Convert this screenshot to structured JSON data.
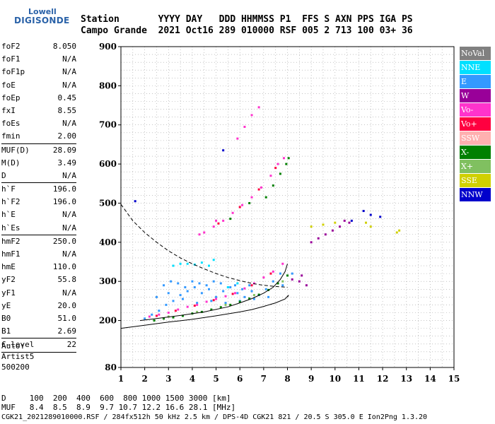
{
  "logo": {
    "line1": "Lowell",
    "line2": "DIGISONDE"
  },
  "header": {
    "line1": "Station       YYYY DAY   DDD HHMMSS P1  FFS S AXN PPS IGA PS",
    "line2": "Campo Grande  2021 Oct16 289 010000 RSF 005 2 713 100 03+ 36"
  },
  "params": [
    {
      "name": "foF2",
      "value": "8.050"
    },
    {
      "name": "foF1",
      "value": "N/A"
    },
    {
      "name": "foF1p",
      "value": "N/A"
    },
    {
      "name": "foE",
      "value": "N/A"
    },
    {
      "name": "foEp",
      "value": "0.45"
    },
    {
      "name": "fxI",
      "value": "8.55"
    },
    {
      "name": "foEs",
      "value": "N/A"
    },
    {
      "name": "fmin",
      "value": "2.00",
      "sep": true
    },
    {
      "name": "MUF(D)",
      "value": "28.09"
    },
    {
      "name": "M(D)",
      "value": "3.49"
    },
    {
      "name": "D",
      "value": "N/A",
      "sep": true
    },
    {
      "name": "h`F",
      "value": "196.0"
    },
    {
      "name": "h`F2",
      "value": "196.0"
    },
    {
      "name": "h`E",
      "value": "N/A"
    },
    {
      "name": "h`Es",
      "value": "N/A",
      "sep": true
    },
    {
      "name": "hmF2",
      "value": "250.0"
    },
    {
      "name": "hmF1",
      "value": "N/A"
    },
    {
      "name": "hmE",
      "value": "110.0"
    },
    {
      "name": "yF2",
      "value": "55.8"
    },
    {
      "name": "yF1",
      "value": "N/A"
    },
    {
      "name": "yE",
      "value": "20.0"
    },
    {
      "name": "B0",
      "value": "51.0"
    },
    {
      "name": "B1",
      "value": "2.69",
      "sep": true
    },
    {
      "name": "C-level",
      "value": "22",
      "sep": true
    }
  ],
  "auto": {
    "line1": "Auto:",
    "line2": "Artist5",
    "line3": "500200"
  },
  "legend": [
    {
      "label": "NoVal",
      "color": "#808080"
    },
    {
      "label": "NNE",
      "color": "#00e0ff"
    },
    {
      "label": "E",
      "color": "#3399ff"
    },
    {
      "label": "W",
      "color": "#990099"
    },
    {
      "label": "Vo-",
      "color": "#ff33cc"
    },
    {
      "label": "Vo+",
      "color": "#ff0040"
    },
    {
      "label": "SSW",
      "color": "#ffb0b0"
    },
    {
      "label": "X-",
      "color": "#008000"
    },
    {
      "label": "X+",
      "color": "#80c060"
    },
    {
      "label": "SSE",
      "color": "#d0d000"
    },
    {
      "label": "NNW",
      "color": "#0000cc"
    }
  ],
  "bottom": {
    "line1": "D     100  200  400  600  800 1000 1500 3000 [km]",
    "line2": "MUF   8.4  8.5  8.9  9.7 10.7 12.2 16.6 28.1 [MHz]"
  },
  "footer": "CGK21_2021289010000.RSF / 284fx512h 50 kHz 2.5 km / DPS-4D CGK21 821 / 20.5 S 305.0 E Ion2Png 1.3.20",
  "chart_data": {
    "type": "scatter",
    "xlim": [
      1,
      15
    ],
    "ylim": [
      80,
      900
    ],
    "x_ticks": [
      1,
      2,
      3,
      4,
      5,
      6,
      7,
      8,
      9,
      10,
      11,
      12,
      13,
      14,
      15
    ],
    "y_ticks": [
      80,
      200,
      300,
      400,
      500,
      600,
      700,
      800,
      900
    ],
    "grid": true,
    "series": [
      {
        "color_key": "E",
        "points": [
          [
            2.0,
            205
          ],
          [
            2.3,
            215
          ],
          [
            2.6,
            225
          ],
          [
            2.9,
            240
          ],
          [
            3.2,
            250
          ],
          [
            3.5,
            265
          ],
          [
            3.8,
            275
          ],
          [
            4.1,
            285
          ],
          [
            4.4,
            270
          ],
          [
            4.7,
            280
          ],
          [
            5.0,
            260
          ],
          [
            5.3,
            275
          ],
          [
            5.6,
            285
          ],
          [
            5.9,
            270
          ],
          [
            6.2,
            260
          ],
          [
            6.5,
            275
          ],
          [
            6.8,
            265
          ],
          [
            7.1,
            280
          ],
          [
            7.4,
            300
          ],
          [
            7.7,
            320
          ],
          [
            2.8,
            290
          ],
          [
            3.1,
            300
          ],
          [
            3.4,
            295
          ],
          [
            3.7,
            285
          ],
          [
            4.0,
            300
          ],
          [
            4.3,
            295
          ],
          [
            4.6,
            290
          ],
          [
            4.9,
            300
          ],
          [
            5.2,
            295
          ],
          [
            5.5,
            285
          ],
          [
            5.8,
            290
          ],
          [
            6.1,
            280
          ],
          [
            6.4,
            290
          ],
          [
            2.5,
            260
          ],
          [
            3.0,
            270
          ],
          [
            3.6,
            255
          ],
          [
            4.2,
            245
          ],
          [
            4.8,
            250
          ],
          [
            5.4,
            245
          ],
          [
            6.0,
            250
          ],
          [
            6.6,
            255
          ],
          [
            7.2,
            260
          ],
          [
            7.8,
            290
          ],
          [
            8.2,
            320
          ]
        ]
      },
      {
        "color_key": "NNE",
        "points": [
          [
            3.5,
            345
          ],
          [
            3.8,
            345
          ],
          [
            4.1,
            343
          ],
          [
            4.4,
            348
          ],
          [
            4.7,
            340
          ],
          [
            3.2,
            340
          ],
          [
            4.9,
            355
          ],
          [
            5.5,
            285
          ],
          [
            5.9,
            295
          ]
        ]
      },
      {
        "color_key": "Vo-",
        "points": [
          [
            2.2,
            210
          ],
          [
            2.6,
            215
          ],
          [
            3.0,
            220
          ],
          [
            3.4,
            228
          ],
          [
            3.8,
            235
          ],
          [
            4.2,
            240
          ],
          [
            4.6,
            248
          ],
          [
            5.0,
            255
          ],
          [
            5.4,
            262
          ],
          [
            5.8,
            270
          ],
          [
            6.2,
            282
          ],
          [
            6.6,
            295
          ],
          [
            7.0,
            310
          ],
          [
            7.4,
            325
          ],
          [
            7.8,
            345
          ],
          [
            4.5,
            425
          ],
          [
            4.9,
            440
          ],
          [
            5.3,
            455
          ],
          [
            5.7,
            475
          ],
          [
            6.1,
            495
          ],
          [
            6.5,
            515
          ],
          [
            6.9,
            540
          ],
          [
            7.3,
            570
          ],
          [
            7.6,
            600
          ],
          [
            7.85,
            615
          ],
          [
            5.9,
            665
          ],
          [
            6.2,
            695
          ],
          [
            6.5,
            725
          ],
          [
            6.8,
            745
          ],
          [
            5.0,
            455
          ],
          [
            4.3,
            420
          ]
        ]
      },
      {
        "color_key": "Vo+",
        "points": [
          [
            2.5,
            212
          ],
          [
            3.3,
            225
          ],
          [
            4.1,
            238
          ],
          [
            4.9,
            252
          ],
          [
            5.7,
            268
          ],
          [
            6.5,
            290
          ],
          [
            7.3,
            320
          ],
          [
            5.1,
            448
          ],
          [
            6.0,
            490
          ],
          [
            6.8,
            535
          ],
          [
            7.5,
            590
          ]
        ]
      },
      {
        "color_key": "W",
        "points": [
          [
            9.0,
            400
          ],
          [
            9.3,
            410
          ],
          [
            9.6,
            420
          ],
          [
            9.9,
            430
          ],
          [
            10.2,
            440
          ],
          [
            10.4,
            455
          ],
          [
            10.6,
            450
          ],
          [
            8.5,
            300
          ],
          [
            8.8,
            290
          ],
          [
            8.2,
            305
          ],
          [
            8.6,
            315
          ]
        ]
      },
      {
        "color_key": "X-",
        "points": [
          [
            2.4,
            200
          ],
          [
            2.8,
            205
          ],
          [
            3.2,
            208
          ],
          [
            3.6,
            212
          ],
          [
            4.0,
            218
          ],
          [
            4.4,
            222
          ],
          [
            4.8,
            228
          ],
          [
            5.2,
            234
          ],
          [
            5.6,
            240
          ],
          [
            6.0,
            248
          ],
          [
            6.4,
            256
          ],
          [
            6.8,
            266
          ],
          [
            7.2,
            278
          ],
          [
            7.6,
            295
          ],
          [
            8.0,
            315
          ],
          [
            7.1,
            515
          ],
          [
            7.4,
            545
          ],
          [
            7.7,
            575
          ],
          [
            7.95,
            600
          ],
          [
            8.05,
            615
          ],
          [
            5.6,
            460
          ],
          [
            6.4,
            500
          ]
        ]
      },
      {
        "color_key": "X+",
        "points": [
          [
            3.0,
            210
          ],
          [
            4.2,
            222
          ],
          [
            5.4,
            240
          ],
          [
            6.6,
            265
          ],
          [
            7.8,
            300
          ]
        ]
      },
      {
        "color_key": "SSE",
        "points": [
          [
            9.0,
            440
          ],
          [
            9.5,
            445
          ],
          [
            10.0,
            450
          ],
          [
            11.3,
            450
          ],
          [
            11.5,
            440
          ],
          [
            12.6,
            425
          ],
          [
            12.7,
            430
          ]
        ]
      },
      {
        "color_key": "NNW",
        "points": [
          [
            1.6,
            505
          ],
          [
            5.3,
            635
          ],
          [
            10.7,
            455
          ],
          [
            11.5,
            470
          ],
          [
            11.9,
            465
          ],
          [
            11.2,
            480
          ]
        ]
      }
    ],
    "traces": [
      {
        "style": "dashed",
        "points": [
          [
            1.0,
            497
          ],
          [
            1.5,
            455
          ],
          [
            2.0,
            425
          ],
          [
            2.5,
            400
          ],
          [
            3.0,
            378
          ],
          [
            3.5,
            360
          ],
          [
            4.0,
            345
          ],
          [
            4.5,
            332
          ],
          [
            5.0,
            320
          ],
          [
            5.5,
            310
          ],
          [
            6.0,
            302
          ],
          [
            6.5,
            295
          ],
          [
            7.0,
            290
          ],
          [
            7.5,
            287
          ],
          [
            8.0,
            285
          ]
        ]
      },
      {
        "style": "solid",
        "points": [
          [
            1.0,
            180
          ],
          [
            2.0,
            188
          ],
          [
            3.0,
            196
          ],
          [
            4.0,
            203
          ],
          [
            5.0,
            212
          ],
          [
            6.0,
            222
          ],
          [
            6.5,
            228
          ],
          [
            7.0,
            236
          ],
          [
            7.5,
            245
          ],
          [
            7.9,
            255
          ],
          [
            8.05,
            265
          ],
          [
            8.0,
            260
          ]
        ]
      },
      {
        "style": "solid",
        "points": [
          [
            1.8,
            200
          ],
          [
            2.5,
            205
          ],
          [
            3.5,
            213
          ],
          [
            4.5,
            222
          ],
          [
            5.5,
            235
          ],
          [
            6.0,
            245
          ],
          [
            6.5,
            256
          ],
          [
            7.0,
            270
          ],
          [
            7.4,
            285
          ],
          [
            7.7,
            305
          ],
          [
            7.9,
            325
          ],
          [
            8.0,
            345
          ]
        ]
      }
    ]
  }
}
